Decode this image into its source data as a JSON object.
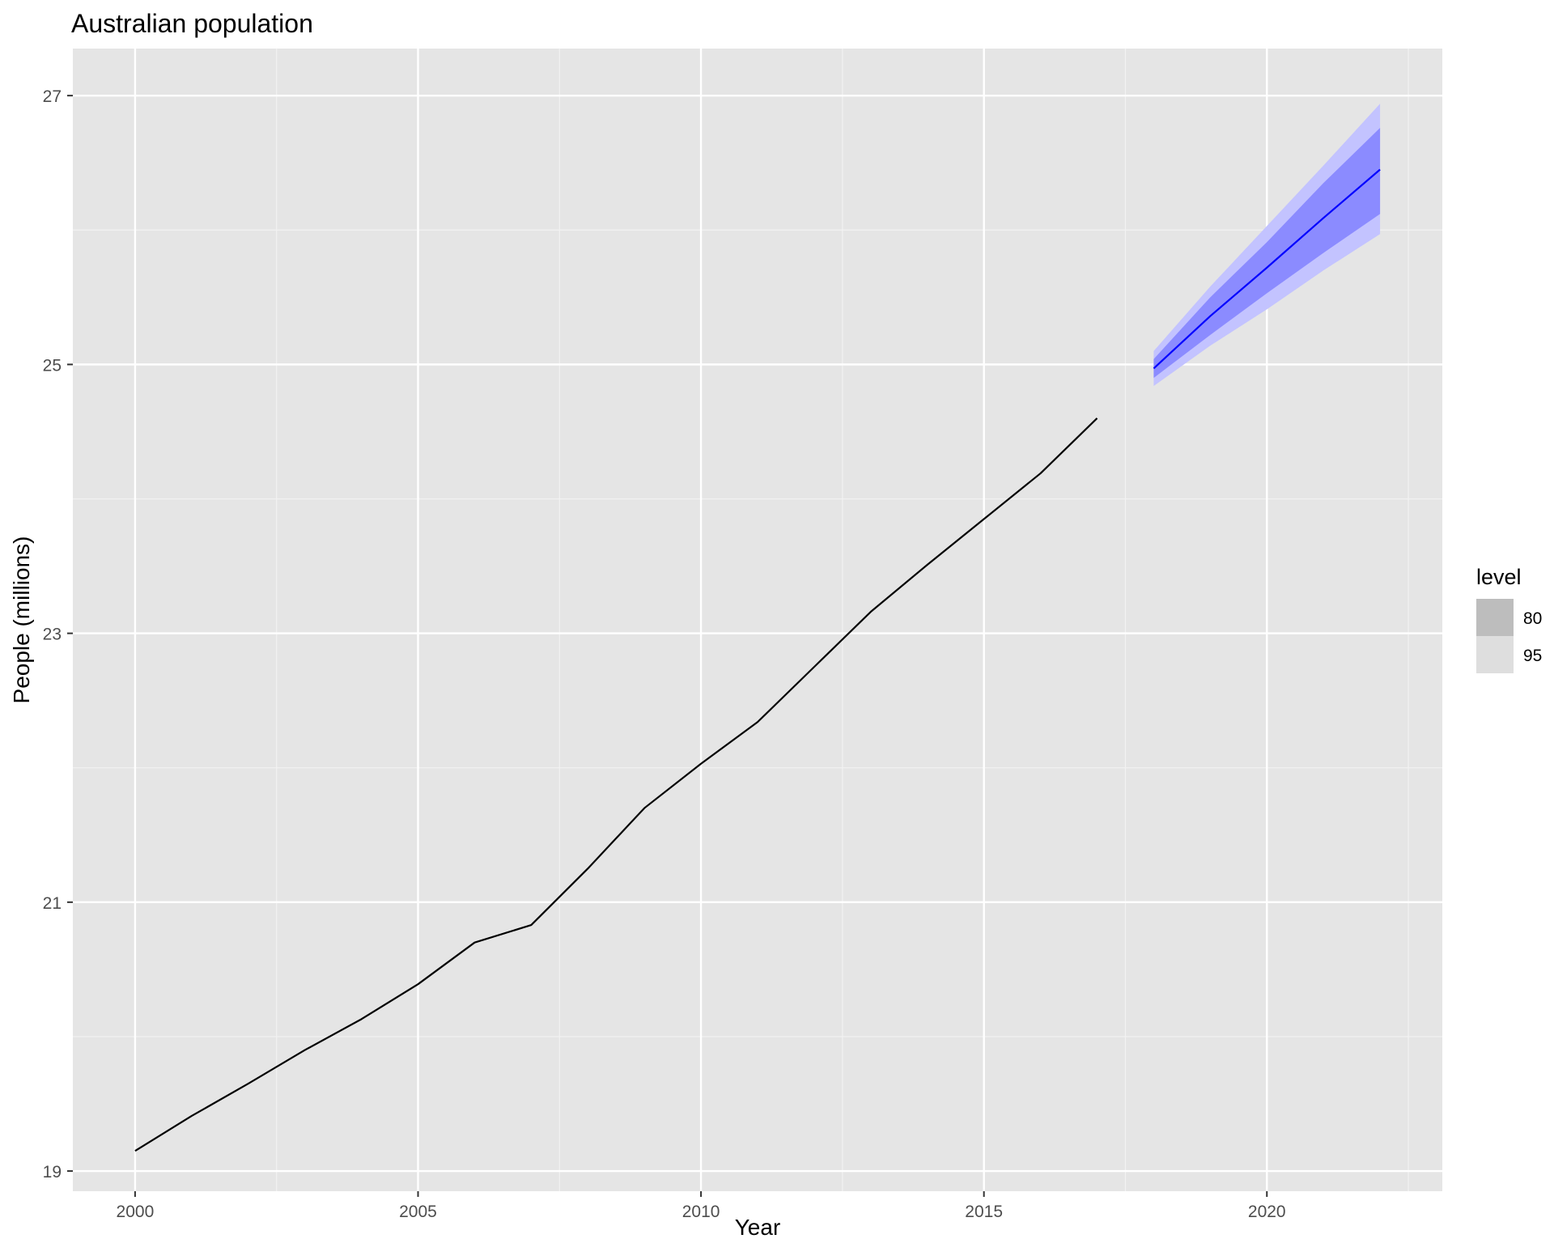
{
  "chart_data": {
    "type": "line",
    "title": "Australian population",
    "xlabel": "Year",
    "ylabel": "People (millions)",
    "xlim": [
      1998.9,
      2023.1
    ],
    "ylim": [
      18.85,
      27.35
    ],
    "x_ticks": [
      2000,
      2005,
      2010,
      2015,
      2020
    ],
    "y_ticks": [
      19,
      21,
      23,
      25,
      27
    ],
    "grid": true,
    "legend": {
      "title": "level",
      "position": "right",
      "items": [
        {
          "label": "80",
          "color": "#bdbdbd"
        },
        {
          "label": "95",
          "color": "#dedede"
        }
      ]
    },
    "series": [
      {
        "x": [
          2000,
          2001,
          2002,
          2003,
          2004,
          2005,
          2006,
          2007,
          2008,
          2009,
          2010,
          2011,
          2012,
          2013,
          2014,
          2015,
          2016,
          2017
        ],
        "values": [
          19.15,
          19.41,
          19.65,
          19.9,
          20.13,
          20.39,
          20.7,
          20.83,
          21.25,
          21.7,
          22.03,
          22.34,
          22.75,
          23.16,
          23.51,
          23.85,
          24.19,
          24.6
        ],
        "color": "#000000"
      },
      {
        "x": [
          2018,
          2019,
          2020,
          2021,
          2022
        ],
        "values": [
          24.97,
          25.36,
          25.72,
          26.09,
          26.45
        ],
        "color": "#0000ff",
        "intervals": [
          {
            "level": "80",
            "lower": [
              24.9,
              25.22,
              25.53,
              25.83,
              26.12
            ],
            "upper": [
              25.04,
              25.5,
              25.91,
              26.35,
              26.76
            ],
            "color": "#8b8bff"
          },
          {
            "level": "95",
            "lower": [
              24.84,
              25.14,
              25.41,
              25.7,
              25.97
            ],
            "upper": [
              25.1,
              25.58,
              26.03,
              26.48,
              26.94
            ],
            "color": "#c3c3ff"
          }
        ]
      }
    ]
  }
}
